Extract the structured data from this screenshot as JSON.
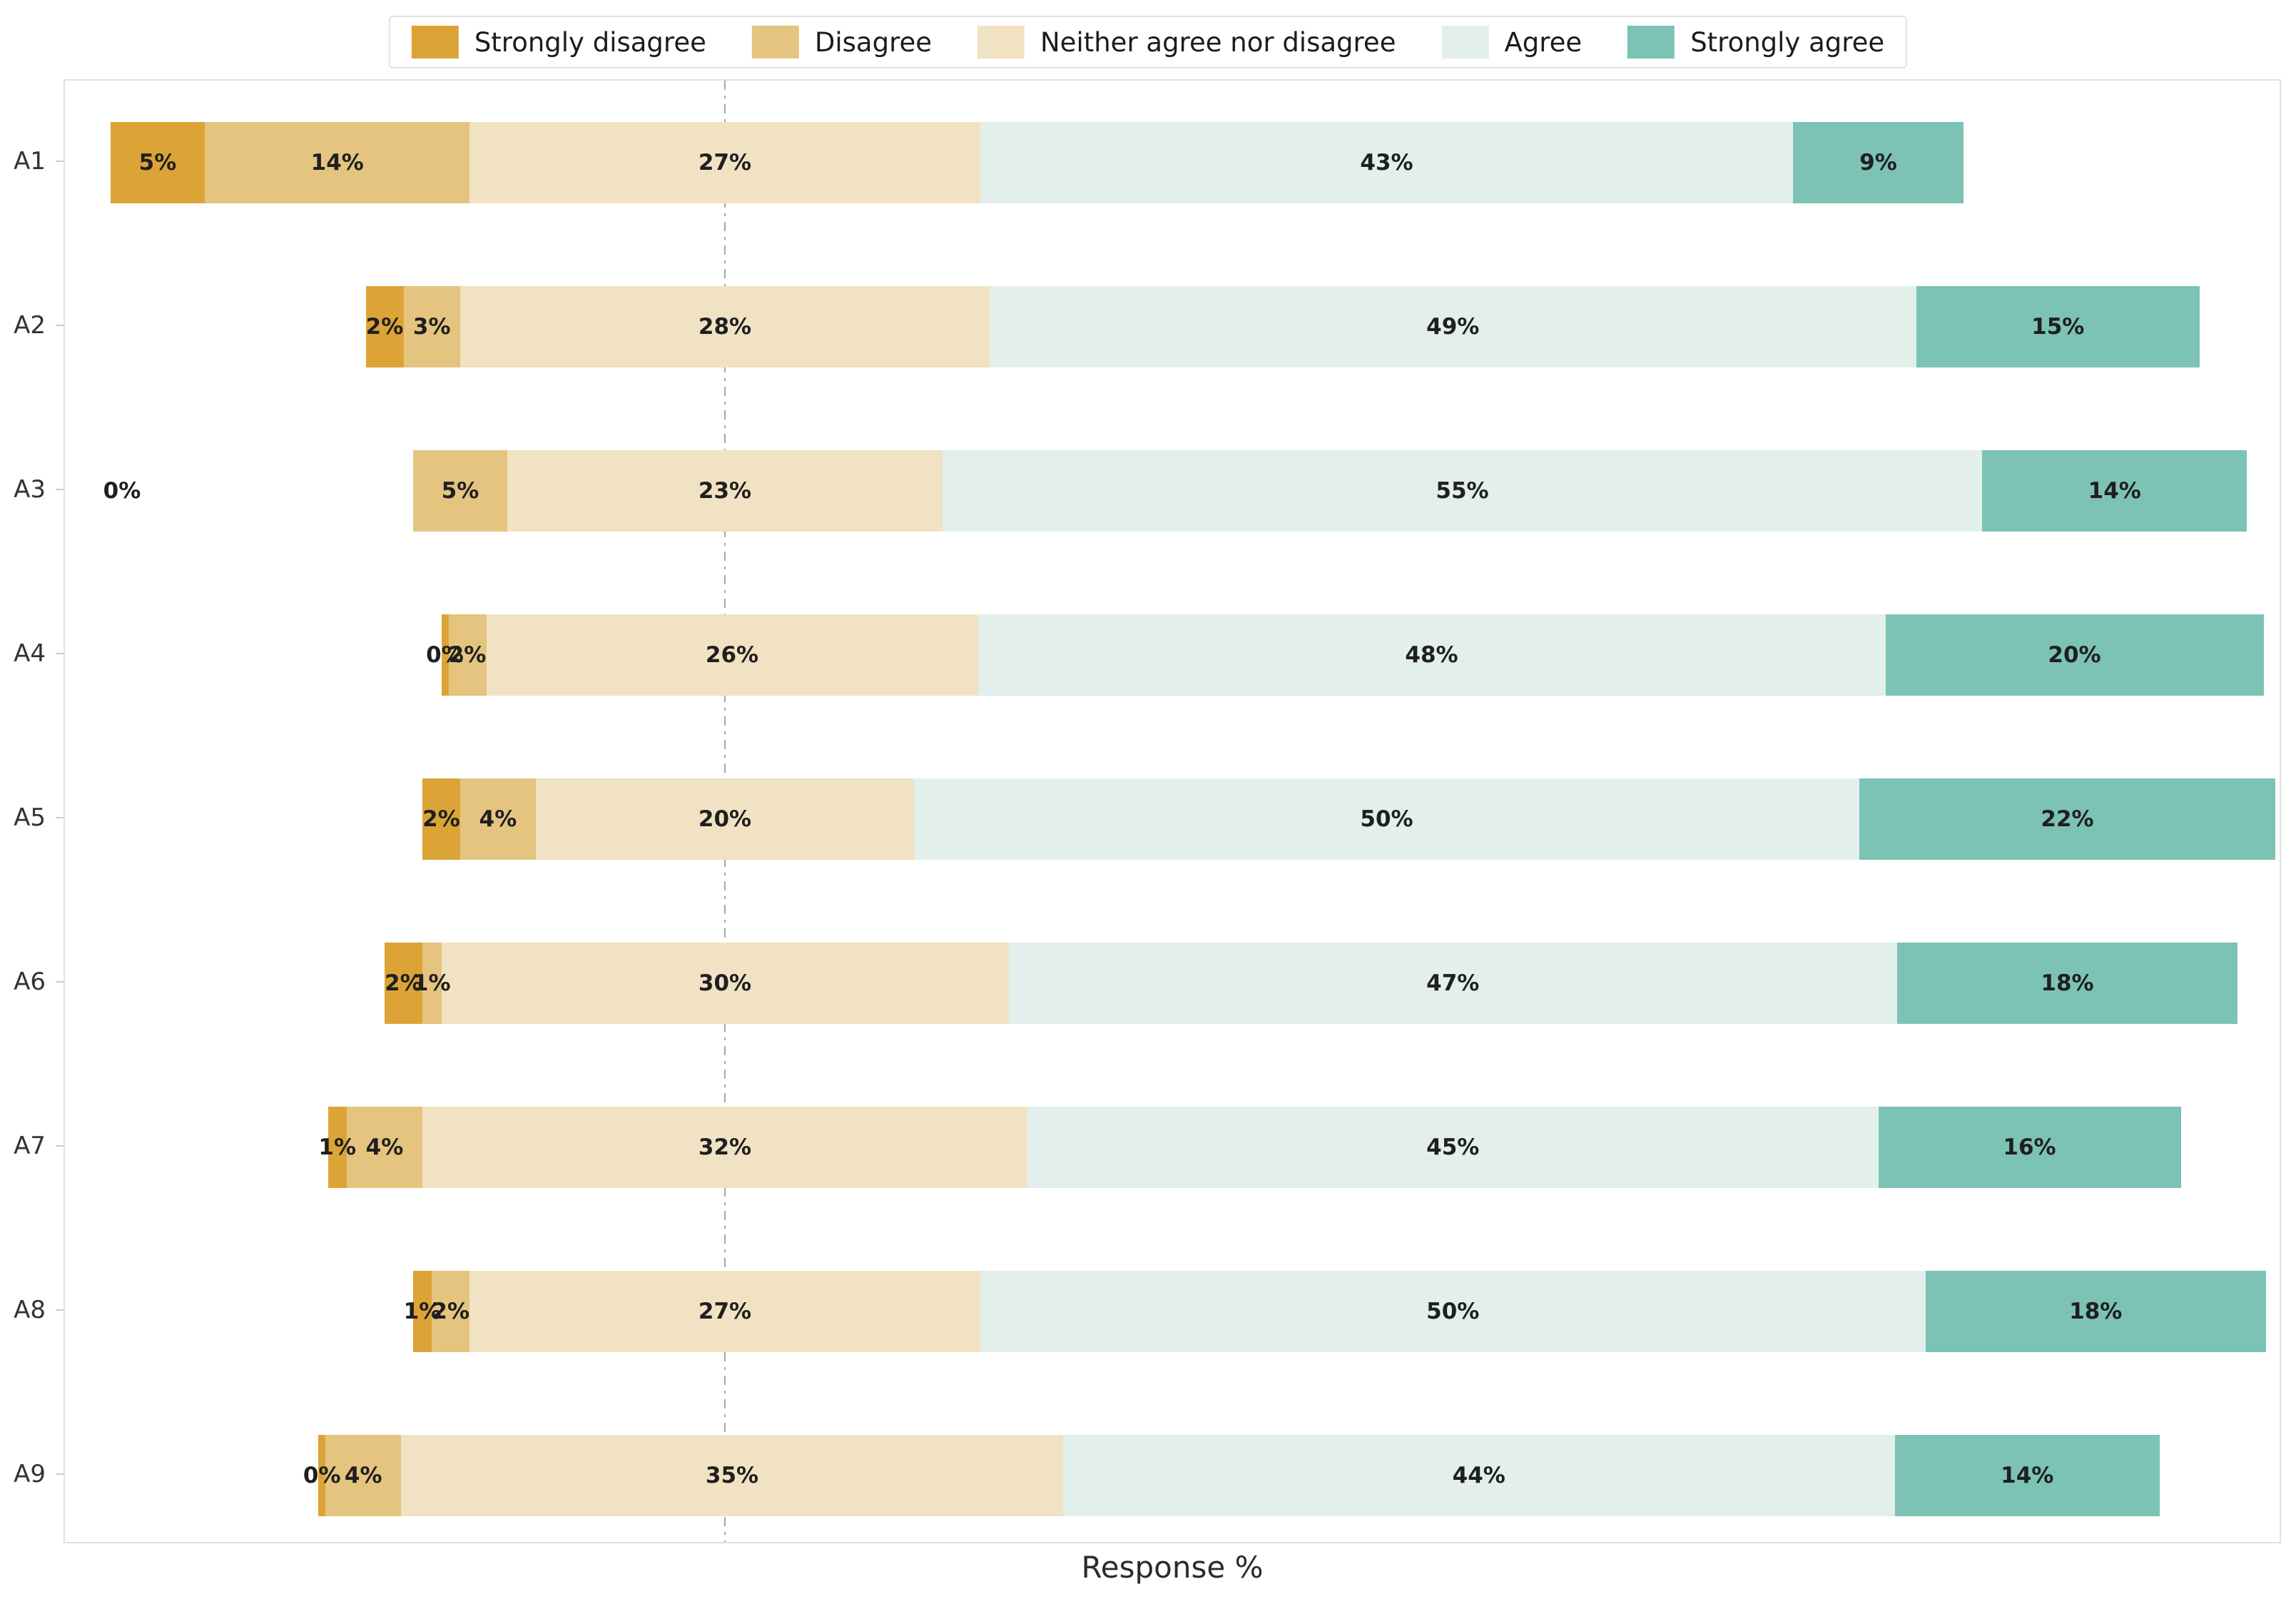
{
  "figure": {
    "background": "#ffffff",
    "plot_border_color": "#e0e0e0",
    "center_line_color": "#a6a6a6",
    "label_text_color": "#1f1f1f"
  },
  "chart_data": {
    "type": "bar",
    "variant": "diverging-stacked-horizontal-likert",
    "title": "",
    "xlabel": "Response %",
    "ylabel": "",
    "legend_position": "top-center",
    "grid": false,
    "center_line": "dash-dot vertical line at midpoint of Neither segment",
    "categories": [
      "A1",
      "A2",
      "A3",
      "A4",
      "A5",
      "A6",
      "A7",
      "A8",
      "A9"
    ],
    "series": [
      {
        "name": "Strongly disagree",
        "color": "#DCA437",
        "values": [
          5,
          2,
          0,
          0,
          2,
          2,
          1,
          1,
          0
        ],
        "labels": [
          "5%",
          "2%",
          "0%",
          "0%",
          "2%",
          "2%",
          "1%",
          "1%",
          "0%"
        ]
      },
      {
        "name": "Disagree",
        "color": "#E4C47F",
        "values": [
          14,
          3,
          5,
          2,
          4,
          1,
          4,
          2,
          4
        ],
        "labels": [
          "14%",
          "3%",
          "5%",
          "2%",
          "4%",
          "1%",
          "4%",
          "2%",
          "4%"
        ]
      },
      {
        "name": "Neither agree nor disagree",
        "color": "#F1E2C3",
        "values": [
          27,
          28,
          23,
          26,
          20,
          30,
          32,
          27,
          35
        ],
        "labels": [
          "27%",
          "28%",
          "23%",
          "26%",
          "20%",
          "30%",
          "32%",
          "27%",
          "35%"
        ]
      },
      {
        "name": "Agree",
        "color": "#E2EFEA",
        "values": [
          43,
          49,
          55,
          48,
          50,
          47,
          45,
          50,
          44
        ],
        "labels": [
          "43%",
          "49%",
          "55%",
          "48%",
          "50%",
          "47%",
          "45%",
          "50%",
          "44%"
        ]
      },
      {
        "name": "Strongly agree",
        "color": "#7CC2B5",
        "values": [
          9,
          15,
          14,
          20,
          22,
          18,
          16,
          18,
          14
        ],
        "labels": [
          "9%",
          "15%",
          "14%",
          "20%",
          "22%",
          "18%",
          "16%",
          "18%",
          "14%"
        ]
      }
    ],
    "zero_display": {
      "A3": "outside-left",
      "A4": "sliver",
      "A9": "sliver"
    }
  }
}
